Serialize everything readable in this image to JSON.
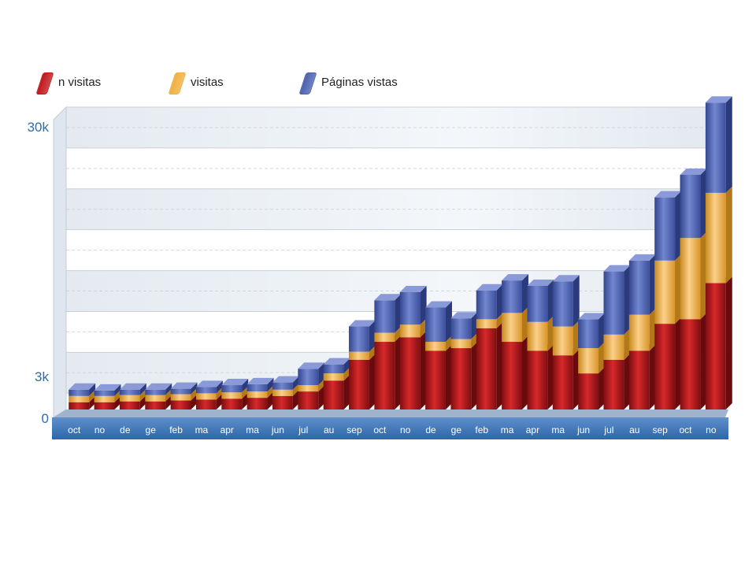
{
  "chart_data": {
    "type": "bar",
    "stacked": true,
    "title": "",
    "legend": [
      {
        "name": "n visitas",
        "color": "#c0181b"
      },
      {
        "name": "visitas",
        "color": "#f0b040"
      },
      {
        "name": "Páginas vistas",
        "color": "#4d62b0"
      }
    ],
    "legend_placement": "top-left",
    "categories": [
      "oct",
      "no",
      "de",
      "ge",
      "feb",
      "ma",
      "apr",
      "ma",
      "jun",
      "jul",
      "au",
      "sep",
      "oct",
      "no",
      "de",
      "ge",
      "feb",
      "ma",
      "apr",
      "ma",
      "jun",
      "jul",
      "au",
      "sep",
      "oct",
      "no"
    ],
    "series": [
      {
        "name": "n visitas",
        "values": [
          800,
          800,
          900,
          900,
          1000,
          1100,
          1200,
          1300,
          1500,
          2000,
          3200,
          5500,
          7500,
          8000,
          6500,
          6800,
          9000,
          7500,
          6500,
          6000,
          4000,
          5500,
          6500,
          9500,
          10000,
          14000
        ]
      },
      {
        "name": "visitas",
        "values": [
          700,
          700,
          700,
          700,
          700,
          700,
          700,
          700,
          700,
          700,
          800,
          900,
          1000,
          1400,
          1000,
          1000,
          1000,
          3200,
          3200,
          3200,
          2800,
          2800,
          4000,
          7000,
          9000,
          10000
        ]
      },
      {
        "name": "Páginas vistas",
        "values": [
          700,
          600,
          600,
          600,
          600,
          700,
          800,
          800,
          800,
          1800,
          1000,
          2800,
          3600,
          3600,
          3800,
          2300,
          3200,
          3600,
          4000,
          5000,
          3200,
          7000,
          6000,
          7000,
          7000,
          10000
        ]
      }
    ],
    "y_ticks": [
      "0",
      "3k",
      "30k"
    ],
    "ylim": [
      0,
      33500
    ],
    "grid": true
  }
}
